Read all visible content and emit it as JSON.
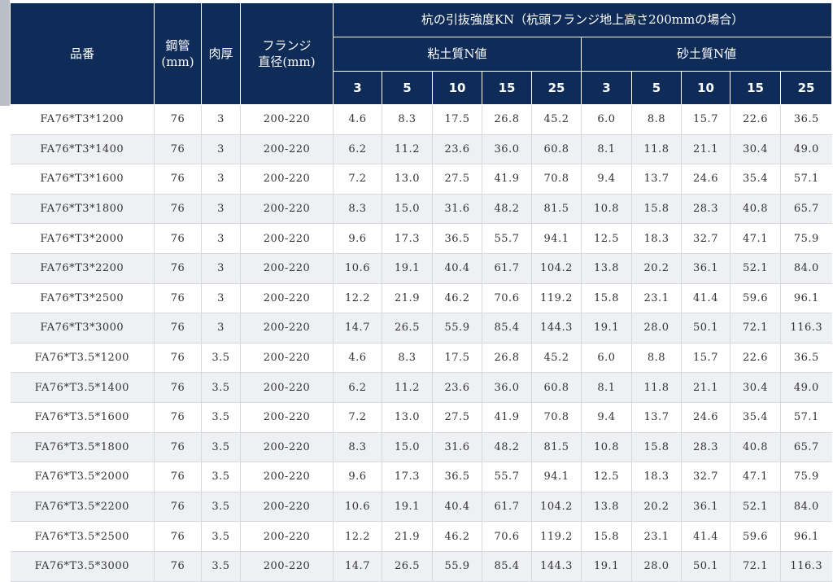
{
  "header": {
    "product_no": "品番",
    "steel_pipe": "鋼管",
    "steel_pipe_unit": "(mm)",
    "thickness": "肉厚",
    "flange": "フランジ",
    "flange_diameter": "直径(mm)",
    "strength_title": "杭の引抜強度KN（杭頭フランジ地上高さ200mmの場合）",
    "clay_group": "粘土質N値",
    "sand_group": "砂土質N値",
    "n_values": [
      "3",
      "5",
      "10",
      "15",
      "25",
      "3",
      "5",
      "10",
      "15",
      "25"
    ]
  },
  "rows": [
    [
      "FA76*T3*1200",
      "76",
      "3",
      "200-220",
      "4.6",
      "8.3",
      "17.5",
      "26.8",
      "45.2",
      "6.0",
      "8.8",
      "15.7",
      "22.6",
      "36.5"
    ],
    [
      "FA76*T3*1400",
      "76",
      "3",
      "200-220",
      "6.2",
      "11.2",
      "23.6",
      "36.0",
      "60.8",
      "8.1",
      "11.8",
      "21.1",
      "30.4",
      "49.0"
    ],
    [
      "FA76*T3*1600",
      "76",
      "3",
      "200-220",
      "7.2",
      "13.0",
      "27.5",
      "41.9",
      "70.8",
      "9.4",
      "13.7",
      "24.6",
      "35.4",
      "57.1"
    ],
    [
      "FA76*T3*1800",
      "76",
      "3",
      "200-220",
      "8.3",
      "15.0",
      "31.6",
      "48.2",
      "81.5",
      "10.8",
      "15.8",
      "28.3",
      "40.8",
      "65.7"
    ],
    [
      "FA76*T3*2000",
      "76",
      "3",
      "200-220",
      "9.6",
      "17.3",
      "36.5",
      "55.7",
      "94.1",
      "12.5",
      "18.3",
      "32.7",
      "47.1",
      "75.9"
    ],
    [
      "FA76*T3*2200",
      "76",
      "3",
      "200-220",
      "10.6",
      "19.1",
      "40.4",
      "61.7",
      "104.2",
      "13.8",
      "20.2",
      "36.1",
      "52.1",
      "84.0"
    ],
    [
      "FA76*T3*2500",
      "76",
      "3",
      "200-220",
      "12.2",
      "21.9",
      "46.2",
      "70.6",
      "119.2",
      "15.8",
      "23.1",
      "41.4",
      "59.6",
      "96.1"
    ],
    [
      "FA76*T3*3000",
      "76",
      "3",
      "200-220",
      "14.7",
      "26.5",
      "55.9",
      "85.4",
      "144.3",
      "19.1",
      "28.0",
      "50.1",
      "72.1",
      "116.3"
    ],
    [
      "FA76*T3.5*1200",
      "76",
      "3.5",
      "200-220",
      "4.6",
      "8.3",
      "17.5",
      "26.8",
      "45.2",
      "6.0",
      "8.8",
      "15.7",
      "22.6",
      "36.5"
    ],
    [
      "FA76*T3.5*1400",
      "76",
      "3.5",
      "200-220",
      "6.2",
      "11.2",
      "23.6",
      "36.0",
      "60.8",
      "8.1",
      "11.8",
      "21.1",
      "30.4",
      "49.0"
    ],
    [
      "FA76*T3.5*1600",
      "76",
      "3.5",
      "200-220",
      "7.2",
      "13.0",
      "27.5",
      "41.9",
      "70.8",
      "9.4",
      "13.7",
      "24.6",
      "35.4",
      "57.1"
    ],
    [
      "FA76*T3.5*1800",
      "76",
      "3.5",
      "200-220",
      "8.3",
      "15.0",
      "31.6",
      "48.2",
      "81.5",
      "10.8",
      "15.8",
      "28.3",
      "40.8",
      "65.7"
    ],
    [
      "FA76*T3.5*2000",
      "76",
      "3.5",
      "200-220",
      "9.6",
      "17.3",
      "36.5",
      "55.7",
      "94.1",
      "12.5",
      "18.3",
      "32.7",
      "47.1",
      "75.9"
    ],
    [
      "FA76*T3.5*2200",
      "76",
      "3.5",
      "200-220",
      "10.6",
      "19.1",
      "40.4",
      "61.7",
      "104.2",
      "13.8",
      "20.2",
      "36.1",
      "52.1",
      "84.0"
    ],
    [
      "FA76*T3.5*2500",
      "76",
      "3.5",
      "200-220",
      "12.2",
      "21.9",
      "46.2",
      "70.6",
      "119.2",
      "15.8",
      "23.1",
      "41.4",
      "59.6",
      "96.1"
    ],
    [
      "FA76*T3.5*3000",
      "76",
      "3.5",
      "200-220",
      "14.7",
      "26.5",
      "55.9",
      "85.4",
      "144.3",
      "19.1",
      "28.0",
      "50.1",
      "72.1",
      "116.3"
    ]
  ],
  "colors": {
    "header_bg": "#0f2c59",
    "header_text": "#ffffff",
    "row_alt_bg": "#eef0f3",
    "cell_text": "#333333"
  }
}
